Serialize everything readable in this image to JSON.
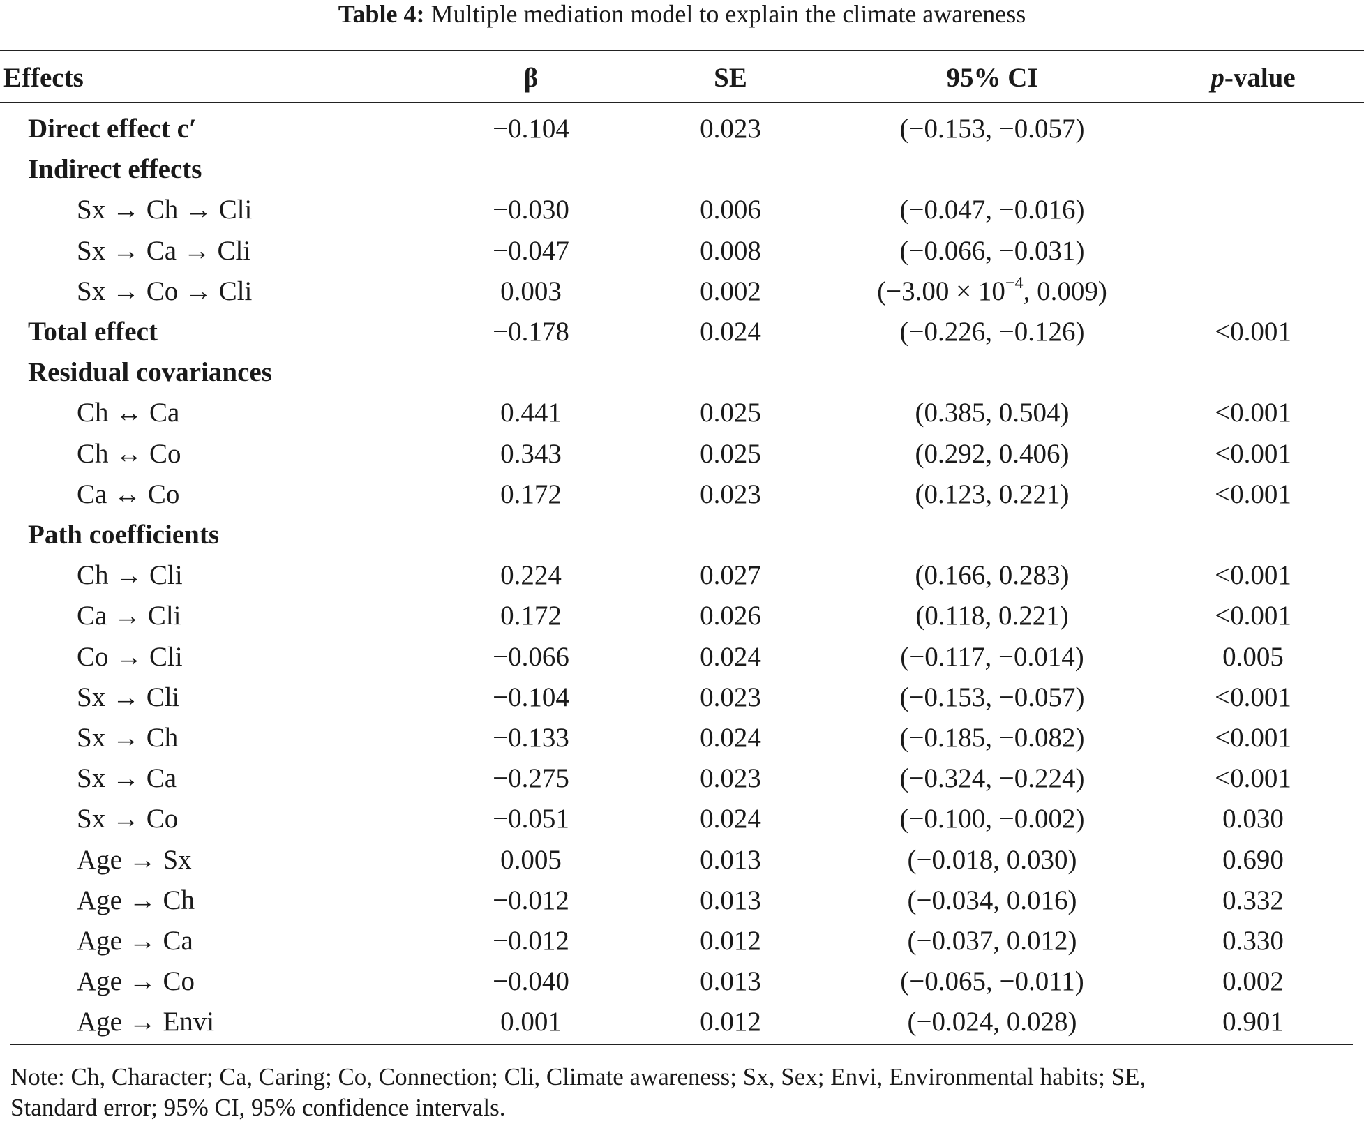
{
  "caption": {
    "label": "Table 4:",
    "text": "Multiple mediation model to explain the climate awareness"
  },
  "header": [
    "Effects",
    "β",
    "SE",
    "95% CI",
    {
      "italic": "p",
      "text": "-value"
    }
  ],
  "rows": [
    {
      "level": "section",
      "cells": [
        "Direct effect c′",
        "−0.104",
        "0.023",
        "(−0.153, −0.057)",
        null
      ]
    },
    {
      "level": "section",
      "cells": [
        "Indirect effects",
        null,
        null,
        null,
        null
      ]
    },
    {
      "level": "item",
      "cells": [
        "Sx → Ch → Cli",
        "−0.030",
        "0.006",
        "(−0.047, −0.016)",
        null
      ]
    },
    {
      "level": "item",
      "cells": [
        "Sx → Ca → Cli",
        "−0.047",
        "0.008",
        "(−0.066, −0.031)",
        null
      ]
    },
    {
      "level": "item",
      "cells": [
        "Sx → Co → Cli",
        "0.003",
        "0.002",
        {
          "before": "(−3.00 × 10",
          "sup": "−4",
          "after": ", 0.009)"
        },
        null
      ]
    },
    {
      "level": "section",
      "cells": [
        "Total effect",
        "−0.178",
        "0.024",
        "(−0.226, −0.126)",
        "<0.001"
      ]
    },
    {
      "level": "section",
      "cells": [
        "Residual covariances",
        null,
        null,
        null,
        null
      ]
    },
    {
      "level": "item",
      "cells": [
        "Ch ↔ Ca",
        "0.441",
        "0.025",
        "(0.385, 0.504)",
        "<0.001"
      ]
    },
    {
      "level": "item",
      "cells": [
        "Ch ↔ Co",
        "0.343",
        "0.025",
        "(0.292, 0.406)",
        "<0.001"
      ]
    },
    {
      "level": "item",
      "cells": [
        "Ca ↔ Co",
        "0.172",
        "0.023",
        "(0.123, 0.221)",
        "<0.001"
      ]
    },
    {
      "level": "section",
      "cells": [
        "Path coefficients",
        null,
        null,
        null,
        null
      ]
    },
    {
      "level": "item",
      "cells": [
        "Ch → Cli",
        "0.224",
        "0.027",
        "(0.166, 0.283)",
        "<0.001"
      ]
    },
    {
      "level": "item",
      "cells": [
        "Ca → Cli",
        "0.172",
        "0.026",
        "(0.118, 0.221)",
        "<0.001"
      ]
    },
    {
      "level": "item",
      "cells": [
        "Co → Cli",
        "−0.066",
        "0.024",
        "(−0.117, −0.014)",
        "0.005"
      ]
    },
    {
      "level": "item",
      "cells": [
        "Sx → Cli",
        "−0.104",
        "0.023",
        "(−0.153, −0.057)",
        "<0.001"
      ]
    },
    {
      "level": "item",
      "cells": [
        "Sx → Ch",
        "−0.133",
        "0.024",
        "(−0.185, −0.082)",
        "<0.001"
      ]
    },
    {
      "level": "item",
      "cells": [
        "Sx → Ca",
        "−0.275",
        "0.023",
        "(−0.324, −0.224)",
        "<0.001"
      ]
    },
    {
      "level": "item",
      "cells": [
        "Sx → Co",
        "−0.051",
        "0.024",
        "(−0.100, −0.002)",
        "0.030"
      ]
    },
    {
      "level": "item",
      "cells": [
        "Age → Sx",
        "0.005",
        "0.013",
        "(−0.018, 0.030)",
        "0.690"
      ]
    },
    {
      "level": "item",
      "cells": [
        "Age → Ch",
        "−0.012",
        "0.013",
        "(−0.034, 0.016)",
        "0.332"
      ]
    },
    {
      "level": "item",
      "cells": [
        "Age → Ca",
        "−0.012",
        "0.012",
        "(−0.037, 0.012)",
        "0.330"
      ]
    },
    {
      "level": "item",
      "cells": [
        "Age → Co",
        "−0.040",
        "0.013",
        "(−0.065, −0.011)",
        "0.002"
      ]
    },
    {
      "level": "item",
      "cells": [
        "Age → Envi",
        "0.001",
        "0.012",
        "(−0.024, 0.028)",
        "0.901"
      ]
    }
  ],
  "note": [
    "Note: Ch, Character; Ca, Caring; Co, Connection; Cli, Climate awareness; Sx, Sex; Envi, Environmental habits; SE,",
    "Standard error; 95% CI, 95% confidence intervals."
  ]
}
